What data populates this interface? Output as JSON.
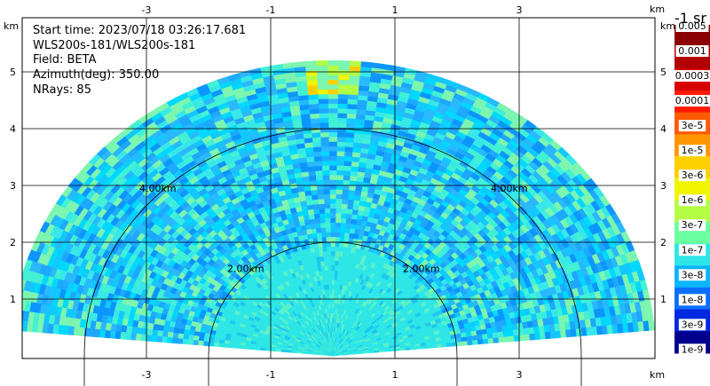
{
  "info": {
    "start_time": "Start time: 2023/07/18 03:26:17.681",
    "instrument": "WLS200s-181/WLS200s-181",
    "field": "Field: BETA",
    "azimuth": "Azimuth(deg): 350.00",
    "nrays": "NRays: 85"
  },
  "chart_data": {
    "type": "heatmap",
    "projection": "rhi",
    "field": "BETA",
    "units_label": "-1 sr",
    "axis_unit": "km",
    "x_ticks": [
      "-3",
      "-1",
      "1",
      "3"
    ],
    "y_ticks": [
      "1",
      "2",
      "3",
      "4",
      "5"
    ],
    "xlim": [
      -5,
      5
    ],
    "ylim": [
      0,
      5.3
    ],
    "max_range_km": 5.2,
    "elevation_range_deg": [
      5,
      175
    ],
    "rays": 85,
    "range_rings": [
      {
        "range_km": 2,
        "left_label": "2.00km",
        "right_label": "2.00km"
      },
      {
        "range_km": 4,
        "left_label": "4.00km",
        "right_label": "4.00km"
      }
    ],
    "colorbar": {
      "labels": [
        "0.005",
        "0.001",
        "0.0003",
        "0.0001",
        "3e-5",
        "1e-5",
        "3e-6",
        "1e-6",
        "3e-7",
        "1e-7",
        "3e-8",
        "1e-8",
        "3e-9",
        "1e-9"
      ],
      "colors": [
        "#8b0000",
        "#b20000",
        "#d90000",
        "#ff1a00",
        "#ff5a00",
        "#ff9600",
        "#ffd000",
        "#f2f500",
        "#b4ff44",
        "#6bffa0",
        "#2ee6e6",
        "#0ab4ff",
        "#0a6eff",
        "#0028e0",
        "#00008f"
      ]
    },
    "grid": true,
    "dominant_value_band": "1e-7 to 3e-7"
  }
}
